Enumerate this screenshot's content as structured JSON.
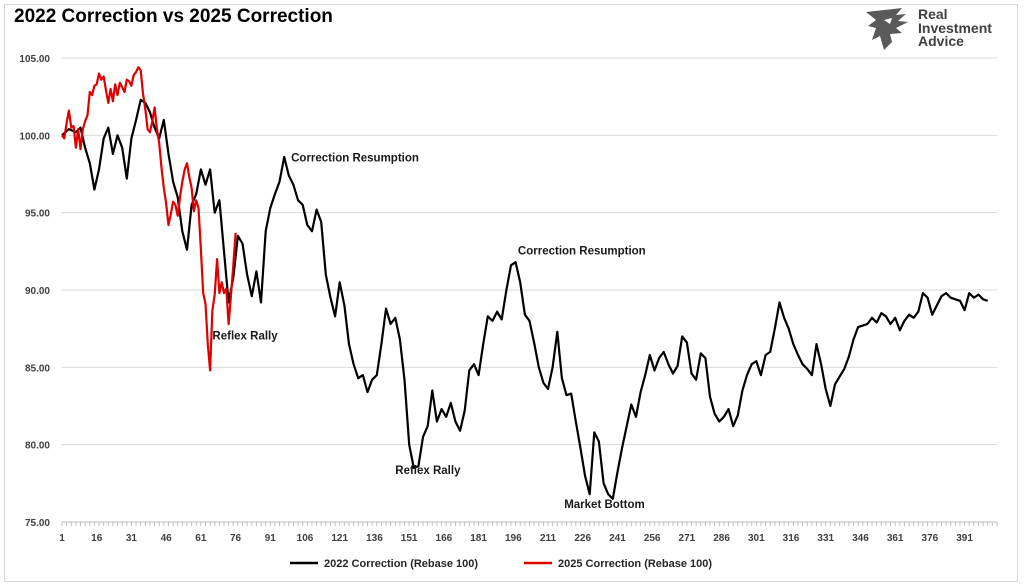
{
  "title": "2022 Correction vs 2025 Correction",
  "brand": {
    "lines": [
      "Real",
      "Investment",
      "Advice"
    ]
  },
  "chart_data": {
    "type": "line",
    "title": "2022 Correction vs 2025 Correction",
    "xlabel": "",
    "ylabel": "",
    "ylim": [
      75,
      105
    ],
    "xlim": [
      1,
      405
    ],
    "yticks": [
      "105.00",
      "100.00",
      "95.00",
      "90.00",
      "85.00",
      "80.00",
      "75.00"
    ],
    "xticks": [
      1,
      16,
      31,
      46,
      61,
      76,
      91,
      106,
      121,
      136,
      151,
      166,
      181,
      196,
      211,
      226,
      241,
      256,
      271,
      286,
      301,
      316,
      331,
      346,
      361,
      376,
      391
    ],
    "grid": "horizontal",
    "legend_position": "bottom",
    "colors": {
      "2022": "#000000",
      "2025": "#e00000"
    },
    "series": [
      {
        "name": "2022 Correction (Rebase 100)",
        "color": "#000000",
        "points": [
          [
            1,
            100
          ],
          [
            4,
            100.4
          ],
          [
            7,
            100.2
          ],
          [
            9,
            100.5
          ],
          [
            11,
            99.2
          ],
          [
            13,
            98.2
          ],
          [
            15,
            96.5
          ],
          [
            17,
            97.8
          ],
          [
            19,
            99.8
          ],
          [
            21,
            100.5
          ],
          [
            23,
            98.8
          ],
          [
            25,
            100
          ],
          [
            27,
            99.2
          ],
          [
            29,
            97.2
          ],
          [
            31,
            99.8
          ],
          [
            33,
            101
          ],
          [
            35,
            102.3
          ],
          [
            37,
            102.1
          ],
          [
            39,
            101.5
          ],
          [
            41,
            100.5
          ],
          [
            43,
            99.8
          ],
          [
            45,
            101
          ],
          [
            47,
            98.8
          ],
          [
            49,
            97
          ],
          [
            51,
            96
          ],
          [
            53,
            93.8
          ],
          [
            55,
            92.6
          ],
          [
            57,
            95.5
          ],
          [
            59,
            96.2
          ],
          [
            61,
            97.8
          ],
          [
            63,
            96.8
          ],
          [
            65,
            97.8
          ],
          [
            67,
            95
          ],
          [
            69,
            95.8
          ],
          [
            71,
            92.5
          ],
          [
            73,
            89.2
          ],
          [
            75,
            90.8
          ],
          [
            77,
            93.5
          ],
          [
            79,
            93
          ],
          [
            81,
            91
          ],
          [
            83,
            89.6
          ],
          [
            85,
            91.2
          ],
          [
            87,
            89.2
          ],
          [
            89,
            93.8
          ],
          [
            91,
            95.3
          ],
          [
            93,
            96.2
          ],
          [
            95,
            97
          ],
          [
            97,
            98.6
          ],
          [
            99,
            97.4
          ],
          [
            101,
            96.8
          ],
          [
            103,
            95.8
          ],
          [
            105,
            95.5
          ],
          [
            107,
            94.2
          ],
          [
            109,
            93.8
          ],
          [
            111,
            95.2
          ],
          [
            113,
            94.4
          ],
          [
            115,
            91
          ],
          [
            117,
            89.5
          ],
          [
            119,
            88.3
          ],
          [
            121,
            90.5
          ],
          [
            123,
            89
          ],
          [
            125,
            86.5
          ],
          [
            127,
            85.2
          ],
          [
            129,
            84.3
          ],
          [
            131,
            84.5
          ],
          [
            133,
            83.4
          ],
          [
            135,
            84.2
          ],
          [
            137,
            84.5
          ],
          [
            139,
            86.5
          ],
          [
            141,
            88.8
          ],
          [
            143,
            87.8
          ],
          [
            145,
            88.2
          ],
          [
            147,
            86.8
          ],
          [
            149,
            84.2
          ],
          [
            151,
            80
          ],
          [
            153,
            78.5
          ],
          [
            155,
            78.6
          ],
          [
            157,
            80.5
          ],
          [
            159,
            81.2
          ],
          [
            161,
            83.5
          ],
          [
            163,
            81.5
          ],
          [
            165,
            82.3
          ],
          [
            167,
            81.8
          ],
          [
            169,
            82.7
          ],
          [
            171,
            81.5
          ],
          [
            173,
            80.9
          ],
          [
            175,
            82.2
          ],
          [
            177,
            84.8
          ],
          [
            179,
            85.2
          ],
          [
            181,
            84.5
          ],
          [
            183,
            86.5
          ],
          [
            185,
            88.3
          ],
          [
            187,
            88
          ],
          [
            189,
            88.6
          ],
          [
            191,
            88.1
          ],
          [
            193,
            90
          ],
          [
            195,
            91.6
          ],
          [
            197,
            91.8
          ],
          [
            199,
            90.5
          ],
          [
            201,
            88.4
          ],
          [
            203,
            88
          ],
          [
            205,
            86.6
          ],
          [
            207,
            85
          ],
          [
            209,
            84
          ],
          [
            211,
            83.6
          ],
          [
            213,
            85
          ],
          [
            215,
            87.3
          ],
          [
            217,
            84.3
          ],
          [
            219,
            83.2
          ],
          [
            221,
            83.3
          ],
          [
            223,
            81.5
          ],
          [
            225,
            79.8
          ],
          [
            227,
            78
          ],
          [
            229,
            76.8
          ],
          [
            231,
            80.8
          ],
          [
            233,
            80.2
          ],
          [
            235,
            77.5
          ],
          [
            237,
            76.8
          ],
          [
            239,
            76.5
          ],
          [
            241,
            78.2
          ],
          [
            243,
            79.8
          ],
          [
            245,
            81.2
          ],
          [
            247,
            82.6
          ],
          [
            249,
            81.8
          ],
          [
            251,
            83.4
          ],
          [
            253,
            84.5
          ],
          [
            255,
            85.8
          ],
          [
            257,
            84.8
          ],
          [
            259,
            85.6
          ],
          [
            261,
            86
          ],
          [
            263,
            85.2
          ],
          [
            265,
            84.6
          ],
          [
            267,
            85.1
          ],
          [
            269,
            87
          ],
          [
            271,
            86.6
          ],
          [
            273,
            84.6
          ],
          [
            275,
            84.2
          ],
          [
            277,
            85.9
          ],
          [
            279,
            85.6
          ],
          [
            281,
            83.1
          ],
          [
            283,
            82
          ],
          [
            285,
            81.5
          ],
          [
            287,
            81.8
          ],
          [
            289,
            82.3
          ],
          [
            291,
            81.2
          ],
          [
            293,
            81.9
          ],
          [
            295,
            83.5
          ],
          [
            297,
            84.5
          ],
          [
            299,
            85.2
          ],
          [
            301,
            85.4
          ],
          [
            303,
            84.5
          ],
          [
            305,
            85.8
          ],
          [
            307,
            86
          ],
          [
            309,
            87.5
          ],
          [
            311,
            89.2
          ],
          [
            313,
            88.2
          ],
          [
            315,
            87.5
          ],
          [
            317,
            86.5
          ],
          [
            319,
            85.8
          ],
          [
            321,
            85.2
          ],
          [
            323,
            84.9
          ],
          [
            325,
            84.5
          ],
          [
            327,
            86.5
          ],
          [
            329,
            85.2
          ],
          [
            331,
            83.6
          ],
          [
            333,
            82.5
          ],
          [
            335,
            83.9
          ],
          [
            337,
            84.4
          ],
          [
            339,
            84.9
          ],
          [
            341,
            85.7
          ],
          [
            343,
            86.8
          ],
          [
            345,
            87.6
          ],
          [
            347,
            87.7
          ],
          [
            349,
            87.8
          ],
          [
            351,
            88.2
          ],
          [
            353,
            87.9
          ],
          [
            355,
            88.5
          ],
          [
            357,
            88.3
          ],
          [
            359,
            87.8
          ],
          [
            361,
            88.2
          ],
          [
            363,
            87.4
          ],
          [
            365,
            88
          ],
          [
            367,
            88.4
          ],
          [
            369,
            88.2
          ],
          [
            371,
            88.6
          ],
          [
            373,
            89.8
          ],
          [
            375,
            89.5
          ],
          [
            377,
            88.4
          ],
          [
            379,
            89
          ],
          [
            381,
            89.6
          ],
          [
            383,
            89.8
          ],
          [
            385,
            89.5
          ],
          [
            387,
            89.4
          ],
          [
            389,
            89.3
          ],
          [
            391,
            88.7
          ],
          [
            393,
            89.8
          ],
          [
            395,
            89.5
          ],
          [
            397,
            89.7
          ],
          [
            399,
            89.4
          ],
          [
            401,
            89.3
          ]
        ]
      },
      {
        "name": "2025 Correction (Rebase 100)",
        "color": "#e00000",
        "points": [
          [
            1,
            100
          ],
          [
            2,
            99.8
          ],
          [
            3,
            100.8
          ],
          [
            4,
            101.6
          ],
          [
            5,
            100.5
          ],
          [
            6,
            100.6
          ],
          [
            7,
            99.2
          ],
          [
            8,
            100.4
          ],
          [
            9,
            99.1
          ],
          [
            10,
            100.4
          ],
          [
            11,
            100.9
          ],
          [
            12,
            101.3
          ],
          [
            13,
            102.8
          ],
          [
            14,
            102.6
          ],
          [
            15,
            103.2
          ],
          [
            16,
            103.3
          ],
          [
            17,
            104
          ],
          [
            18,
            103.6
          ],
          [
            19,
            103.8
          ],
          [
            20,
            102.9
          ],
          [
            21,
            102.1
          ],
          [
            22,
            103
          ],
          [
            23,
            102.2
          ],
          [
            24,
            103.3
          ],
          [
            25,
            102.6
          ],
          [
            26,
            103.4
          ],
          [
            27,
            103.1
          ],
          [
            28,
            102.8
          ],
          [
            29,
            103.6
          ],
          [
            30,
            103.5
          ],
          [
            31,
            103.2
          ],
          [
            32,
            103.9
          ],
          [
            33,
            104.1
          ],
          [
            34,
            104.4
          ],
          [
            35,
            104.2
          ],
          [
            36,
            102.7
          ],
          [
            37,
            101.7
          ],
          [
            38,
            100.4
          ],
          [
            39,
            100.2
          ],
          [
            40,
            100.9
          ],
          [
            41,
            101.8
          ],
          [
            42,
            100.4
          ],
          [
            43,
            99.5
          ],
          [
            44,
            97.9
          ],
          [
            45,
            96.6
          ],
          [
            46,
            95.6
          ],
          [
            47,
            94.2
          ],
          [
            48,
            94.9
          ],
          [
            49,
            95.7
          ],
          [
            50,
            95.5
          ],
          [
            51,
            94.8
          ],
          [
            52,
            96
          ],
          [
            53,
            97
          ],
          [
            54,
            97.8
          ],
          [
            55,
            98.2
          ],
          [
            56,
            97.3
          ],
          [
            57,
            96.6
          ],
          [
            58,
            95.1
          ],
          [
            59,
            95.8
          ],
          [
            60,
            95.3
          ],
          [
            61,
            92.6
          ],
          [
            62,
            89.8
          ],
          [
            63,
            89.1
          ],
          [
            64,
            86.5
          ],
          [
            65,
            84.8
          ],
          [
            66,
            88.7
          ],
          [
            67,
            89.7
          ],
          [
            68,
            92
          ],
          [
            69,
            89.8
          ],
          [
            70,
            90.5
          ],
          [
            71,
            89.8
          ],
          [
            72,
            90.1
          ],
          [
            73,
            87.8
          ],
          [
            74,
            89.6
          ],
          [
            75,
            91.6
          ],
          [
            76,
            93.7
          ]
        ]
      }
    ],
    "annotations": [
      {
        "text": "Correction Resumption",
        "x": 100,
        "y": 98.3
      },
      {
        "text": "Correction Resumption",
        "x": 198,
        "y": 92.3
      },
      {
        "text": "Reflex Rally",
        "x": 66,
        "y": 86.8
      },
      {
        "text": "Reflex Rally",
        "x": 145,
        "y": 78.1
      },
      {
        "text": "Market Bottom",
        "x": 218,
        "y": 75.9
      }
    ]
  }
}
